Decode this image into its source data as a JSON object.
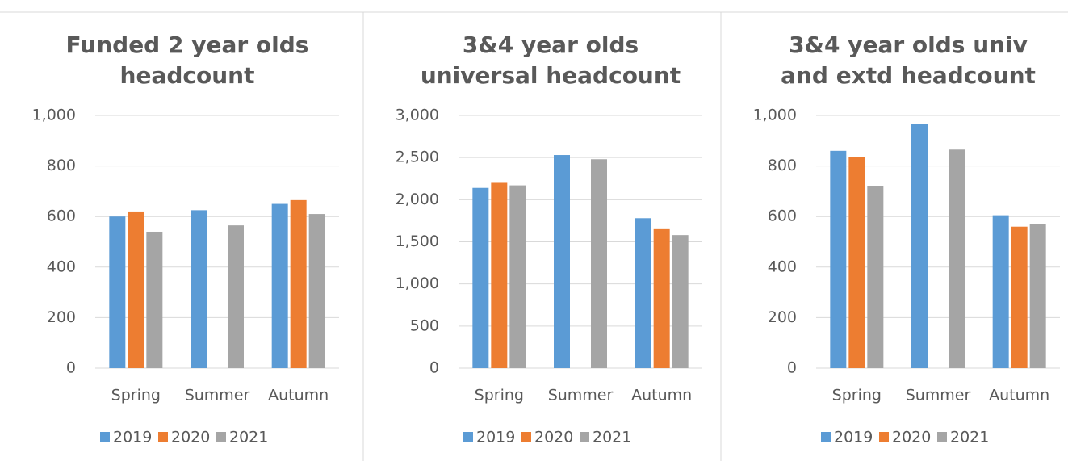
{
  "chart_data": [
    {
      "type": "bar",
      "title": [
        "Funded 2 year olds",
        "headcount"
      ],
      "categories": [
        "Spring",
        "Summer",
        "Autumn"
      ],
      "series": [
        {
          "name": "2019",
          "color": "#5b9bd5",
          "values": [
            600,
            625,
            650
          ]
        },
        {
          "name": "2020",
          "color": "#ed7d31",
          "values": [
            620,
            null,
            665
          ]
        },
        {
          "name": "2021",
          "color": "#a5a5a5",
          "values": [
            540,
            565,
            610
          ]
        }
      ],
      "ylim": [
        0,
        1000
      ],
      "yticks": [
        0,
        200,
        400,
        600,
        800,
        {
          "value": 1000,
          "label": "1,000"
        }
      ],
      "grid": true,
      "legend": "bottom"
    },
    {
      "type": "bar",
      "title": [
        "3&4 year olds",
        "universal headcount"
      ],
      "categories": [
        "Spring",
        "Summer",
        "Autumn"
      ],
      "series": [
        {
          "name": "2019",
          "color": "#5b9bd5",
          "values": [
            2140,
            2530,
            1780
          ]
        },
        {
          "name": "2020",
          "color": "#ed7d31",
          "values": [
            2200,
            null,
            1650
          ]
        },
        {
          "name": "2021",
          "color": "#a5a5a5",
          "values": [
            2170,
            2480,
            1580
          ]
        }
      ],
      "ylim": [
        0,
        3000
      ],
      "yticks": [
        0,
        500,
        {
          "value": 1000,
          "label": "1,000"
        },
        {
          "value": 1500,
          "label": "1,500"
        },
        {
          "value": 2000,
          "label": "2,000"
        },
        {
          "value": 2500,
          "label": "2,500"
        },
        {
          "value": 3000,
          "label": "3,000"
        }
      ],
      "grid": true,
      "legend": "bottom"
    },
    {
      "type": "bar",
      "title": [
        "3&4 year olds univ",
        "and extd headcount"
      ],
      "categories": [
        "Spring",
        "Summer",
        "Autumn"
      ],
      "series": [
        {
          "name": "2019",
          "color": "#5b9bd5",
          "values": [
            860,
            965,
            605
          ]
        },
        {
          "name": "2020",
          "color": "#ed7d31",
          "values": [
            835,
            null,
            560
          ]
        },
        {
          "name": "2021",
          "color": "#a5a5a5",
          "values": [
            720,
            865,
            570
          ]
        }
      ],
      "ylim": [
        0,
        1000
      ],
      "yticks": [
        0,
        200,
        400,
        600,
        800,
        {
          "value": 1000,
          "label": "1,000"
        }
      ],
      "grid": true,
      "legend": "bottom"
    }
  ]
}
